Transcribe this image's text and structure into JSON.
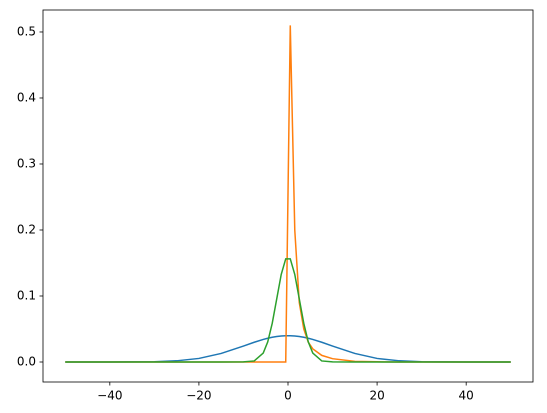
{
  "chart_data": {
    "type": "line",
    "x": [
      -50,
      -40,
      -30,
      -25,
      -20,
      -15,
      -10,
      -7.58,
      -5.56,
      -4.55,
      -3.54,
      -2.53,
      -1.52,
      -0.51,
      0.51,
      1.52,
      2.53,
      3.54,
      4.55,
      5.56,
      7.58,
      10,
      15,
      20,
      25,
      30,
      40,
      50
    ],
    "series": [
      {
        "color": "#1f77b4",
        "values": [
          0.0,
          0.0,
          0.0004,
          0.0018,
          0.0054,
          0.013,
          0.0242,
          0.0299,
          0.0342,
          0.036,
          0.0375,
          0.0386,
          0.0394,
          0.0398,
          0.0398,
          0.0394,
          0.0386,
          0.0375,
          0.036,
          0.0342,
          0.0299,
          0.0242,
          0.013,
          0.0054,
          0.0018,
          0.0004,
          0.0,
          0.0
        ]
      },
      {
        "color": "#ff7f0e",
        "values": [
          0,
          0,
          0,
          0,
          0,
          0,
          0,
          0,
          0,
          0,
          0,
          0,
          0,
          0,
          0.51,
          0.2,
          0.09,
          0.05,
          0.03,
          0.02,
          0.01,
          0.005,
          0.001,
          0.0003,
          0,
          0,
          0,
          0
        ]
      },
      {
        "color": "#2ca02c",
        "values": [
          0,
          0,
          0,
          0,
          0,
          0,
          0.0001,
          0.0016,
          0.0135,
          0.0305,
          0.0586,
          0.0957,
          0.1327,
          0.1563,
          0.1563,
          0.1327,
          0.0957,
          0.0586,
          0.0305,
          0.0135,
          0.0016,
          0.0001,
          0,
          0,
          0,
          0,
          0,
          0
        ]
      }
    ],
    "xlim": [
      -55,
      55
    ],
    "xticks": [
      {
        "value": -40,
        "label": "−40"
      },
      {
        "value": -20,
        "label": "−20"
      },
      0,
      20,
      40
    ],
    "ylim": [
      -0.0303,
      0.5333
    ],
    "yticks": [
      {
        "value": 0,
        "label": "0.0"
      },
      {
        "value": 0.1,
        "label": "0.1"
      },
      {
        "value": 0.2,
        "label": "0.2"
      },
      {
        "value": 0.3,
        "label": "0.3"
      },
      {
        "value": 0.4,
        "label": "0.4"
      },
      {
        "value": 0.5,
        "label": "0.5"
      }
    ]
  }
}
